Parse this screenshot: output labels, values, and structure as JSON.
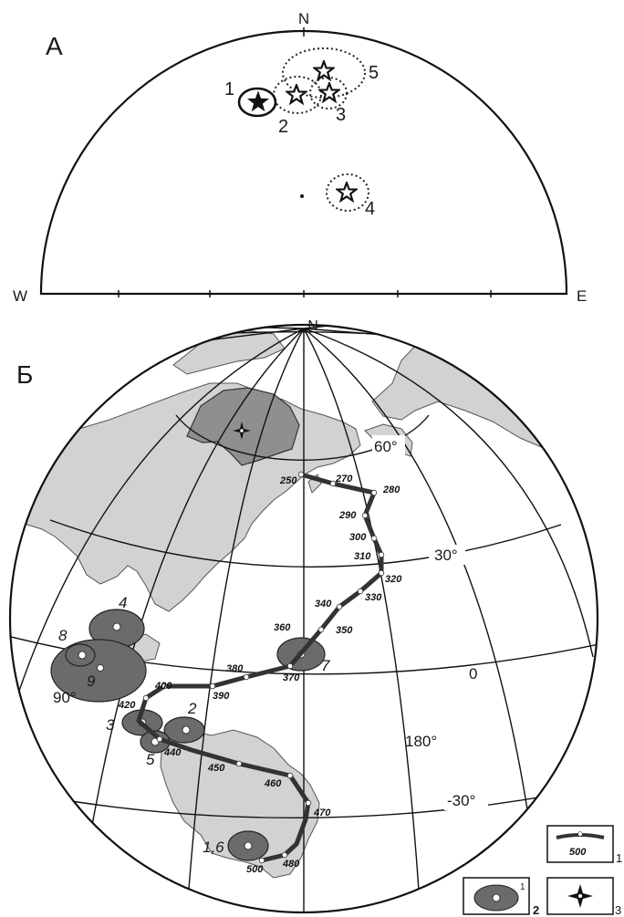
{
  "panel_a": {
    "label": "А",
    "directions": {
      "north": "N",
      "west": "W",
      "east": "E"
    },
    "poles": [
      {
        "id": "1",
        "style": "filled-star",
        "ellipse": "solid"
      },
      {
        "id": "2",
        "style": "open-star",
        "ellipse": "dotted"
      },
      {
        "id": "3",
        "style": "open-star",
        "ellipse": "dotted"
      },
      {
        "id": "4",
        "style": "open-star",
        "ellipse": "dotted"
      },
      {
        "id": "5",
        "style": "open-star",
        "ellipse": "dotted"
      }
    ]
  },
  "panel_b": {
    "label": "Б",
    "north": "N",
    "latitudes": [
      "60°",
      "30°",
      "0",
      "-30°"
    ],
    "longitudes": [
      "90°",
      "180°"
    ],
    "path_ages": [
      "250",
      "270",
      "280",
      "290",
      "300",
      "310",
      "320",
      "330",
      "340",
      "350",
      "360",
      "370",
      "380",
      "390",
      "400",
      "420",
      "440",
      "450",
      "460",
      "470",
      "480",
      "500"
    ],
    "poles": [
      "1,6",
      "2",
      "3",
      "4",
      "5",
      "7",
      "8",
      "9"
    ]
  },
  "legend": {
    "item1": {
      "value": "500",
      "number": "1"
    },
    "item2": {
      "superscript": "1",
      "number": "2"
    },
    "item3": {
      "number": "3"
    }
  },
  "colors": {
    "land": "#d2d2d2",
    "pole_ellipse": "#6b6b6b",
    "path": "#333333",
    "siberia": "#8f8f8f"
  }
}
